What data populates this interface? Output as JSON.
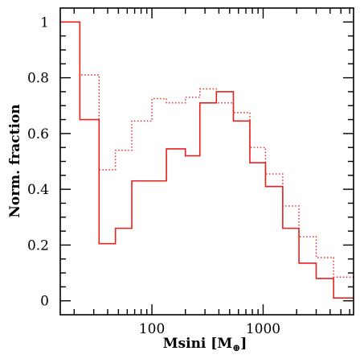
{
  "chart_data": {
    "type": "line",
    "drawstyle": "steps",
    "x_scale": "log",
    "xlim": [
      15,
      6500
    ],
    "ylim": [
      -0.05,
      1.05
    ],
    "xlabel": "Msini [M",
    "xlabel_sub": "⊕",
    "xlabel_close": "]",
    "ylabel": "Norm. fraction",
    "x_ticks": [
      100,
      1000
    ],
    "x_tick_labels": [
      "100",
      "1000"
    ],
    "y_ticks": [
      0,
      0.2,
      0.4,
      0.6,
      0.8,
      1
    ],
    "y_tick_labels": [
      "0",
      "0.2",
      "0.4",
      "0.6",
      "0.8",
      "1"
    ],
    "bin_edges": [
      15,
      22.5,
      33.5,
      47,
      66,
      100,
      135,
      200,
      270,
      380,
      540,
      760,
      1050,
      1500,
      2100,
      3000,
      4300,
      6500
    ],
    "series": [
      {
        "style": "solid",
        "color": "#e8211c",
        "values": [
          1.0,
          0.65,
          0.205,
          0.26,
          0.43,
          0.43,
          0.545,
          0.52,
          0.71,
          0.75,
          0.645,
          0.495,
          0.41,
          0.26,
          0.135,
          0.08,
          0.01
        ]
      },
      {
        "style": "dotted",
        "color": "#e8211c",
        "values": [
          1.0,
          0.81,
          0.47,
          0.54,
          0.645,
          0.725,
          0.71,
          0.73,
          0.76,
          0.71,
          0.675,
          0.55,
          0.455,
          0.34,
          0.23,
          0.155,
          0.085
        ]
      }
    ],
    "grid": false
  }
}
